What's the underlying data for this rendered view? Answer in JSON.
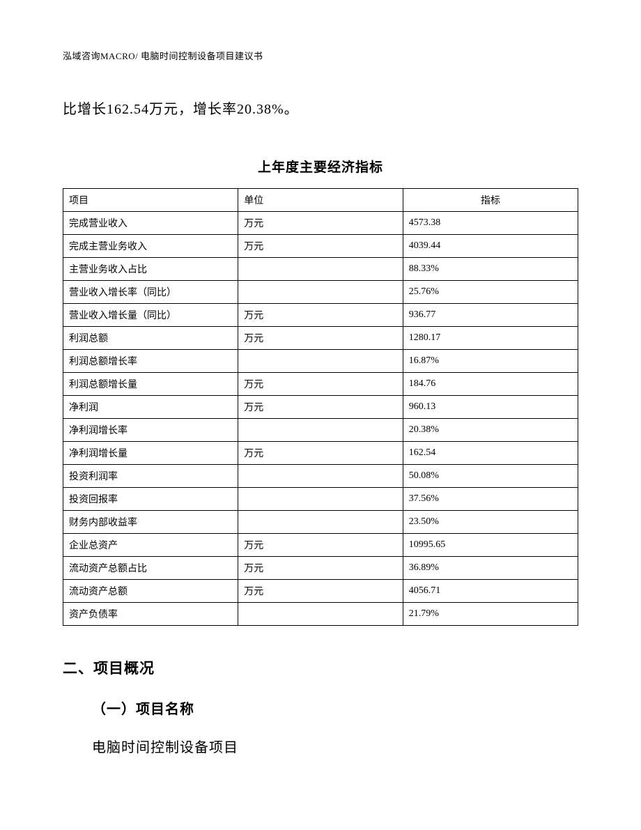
{
  "header": {
    "note": "泓域咨询MACRO/ 电脑时间控制设备项目建议书"
  },
  "intro": "比增长162.54万元，增长率20.38%。",
  "table": {
    "title": "上年度主要经济指标",
    "columns": [
      "项目",
      "单位",
      "指标"
    ],
    "rows": [
      [
        "完成营业收入",
        "万元",
        "4573.38"
      ],
      [
        "完成主营业务收入",
        "万元",
        "4039.44"
      ],
      [
        "主营业务收入占比",
        "",
        "88.33%"
      ],
      [
        "营业收入增长率（同比）",
        "",
        "25.76%"
      ],
      [
        "营业收入增长量（同比）",
        "万元",
        "936.77"
      ],
      [
        "利润总额",
        "万元",
        "1280.17"
      ],
      [
        "利润总额增长率",
        "",
        "16.87%"
      ],
      [
        "利润总额增长量",
        "万元",
        "184.76"
      ],
      [
        "净利润",
        "万元",
        "960.13"
      ],
      [
        "净利润增长率",
        "",
        "20.38%"
      ],
      [
        "净利润增长量",
        "万元",
        "162.54"
      ],
      [
        "投资利润率",
        "",
        "50.08%"
      ],
      [
        "投资回报率",
        "",
        "37.56%"
      ],
      [
        "财务内部收益率",
        "",
        "23.50%"
      ],
      [
        "企业总资产",
        "万元",
        "10995.65"
      ],
      [
        "流动资产总额占比",
        "万元",
        "36.89%"
      ],
      [
        "流动资产总额",
        "万元",
        "4056.71"
      ],
      [
        "资产负债率",
        "",
        "21.79%"
      ]
    ]
  },
  "section": {
    "heading": "二、项目概况",
    "subheading": "（一）项目名称",
    "body": "电脑时间控制设备项目"
  }
}
